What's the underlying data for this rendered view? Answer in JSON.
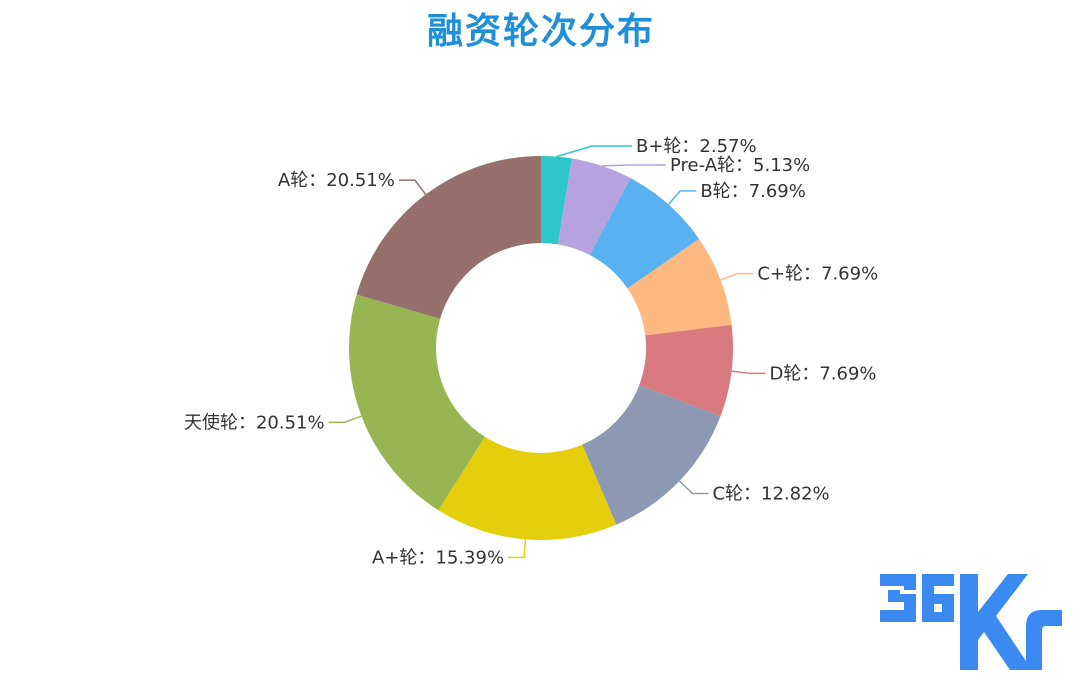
{
  "title": "融资轮次分布",
  "logo_text": "36Kr",
  "chart_data": {
    "type": "pie",
    "variant": "donut",
    "unit": "%",
    "slices": [
      {
        "label": "B+轮",
        "value": 2.57,
        "color": "#2ec7c9"
      },
      {
        "label": "Pre-A轮",
        "value": 5.13,
        "color": "#b6a2de"
      },
      {
        "label": "B轮",
        "value": 7.69,
        "color": "#5ab1ef"
      },
      {
        "label": "C+轮",
        "value": 7.69,
        "color": "#ffb980"
      },
      {
        "label": "D轮",
        "value": 7.69,
        "color": "#d87a80"
      },
      {
        "label": "C轮",
        "value": 12.82,
        "color": "#8d98b3"
      },
      {
        "label": "A+轮",
        "value": 15.39,
        "color": "#e5cf0d"
      },
      {
        "label": "天使轮",
        "value": 20.51,
        "color": "#97b552"
      },
      {
        "label": "A轮",
        "value": 20.51,
        "color": "#95706d"
      }
    ]
  }
}
